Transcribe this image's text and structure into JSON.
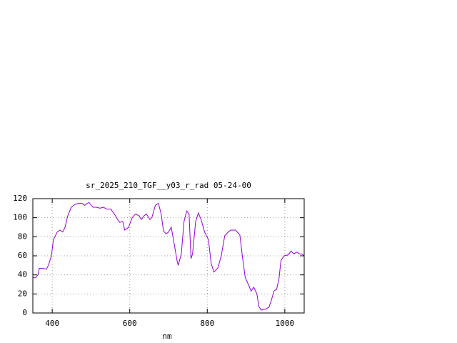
{
  "chart_data": {
    "type": "line",
    "title": "sr_2025_210_TGF__y03_r_rad 05-24-00",
    "x_label": "nm",
    "xlim": [
      350,
      1050
    ],
    "xticks": [
      400,
      600,
      800,
      1000
    ],
    "ylim": [
      0,
      120
    ],
    "yticks": [
      0,
      20,
      40,
      60,
      80,
      100,
      120
    ],
    "grid": true,
    "series": [
      {
        "color": "#9400d3",
        "x": [
          350,
          357,
          363,
          367,
          376,
          385,
          390,
          398,
          403,
          413,
          420,
          427,
          433,
          440,
          449,
          459,
          468,
          477,
          484,
          490,
          495,
          505,
          514,
          523,
          532,
          541,
          551,
          560,
          569,
          574,
          582,
          587,
          597,
          606,
          615,
          624,
          630,
          637,
          643,
          652,
          657,
          666,
          674,
          681,
          687,
          694,
          700,
          707,
          714,
          722,
          725,
          733,
          740,
          747,
          753,
          758,
          762,
          770,
          777,
          784,
          793,
          803,
          810,
          817,
          827,
          836,
          845,
          854,
          861,
          873,
          884,
          891,
          898,
          906,
          913,
          920,
          928,
          933,
          939,
          950,
          959,
          965,
          972,
          979,
          985,
          990,
          998,
          1009,
          1016,
          1023,
          1031,
          1038,
          1044,
          1050
        ],
        "values": [
          37,
          37,
          40,
          47,
          47,
          46,
          50,
          60,
          77,
          85,
          87,
          85,
          90,
          102,
          111,
          114,
          115,
          115,
          113,
          115,
          116,
          111,
          111,
          110,
          111,
          109,
          109,
          104,
          98,
          95,
          96,
          87,
          90,
          100,
          104,
          102,
          98,
          102,
          104,
          98,
          100,
          113,
          115,
          104,
          86,
          83,
          85,
          90,
          74,
          55,
          50,
          62,
          96,
          107,
          104,
          57,
          62,
          96,
          105,
          98,
          85,
          77,
          52,
          43,
          47,
          60,
          81,
          85,
          87,
          87,
          82,
          58,
          37,
          30,
          23,
          27,
          20,
          7,
          3,
          4,
          6,
          13,
          23,
          25,
          36,
          55,
          60,
          61,
          65,
          62,
          64,
          62,
          62,
          60
        ]
      }
    ]
  }
}
